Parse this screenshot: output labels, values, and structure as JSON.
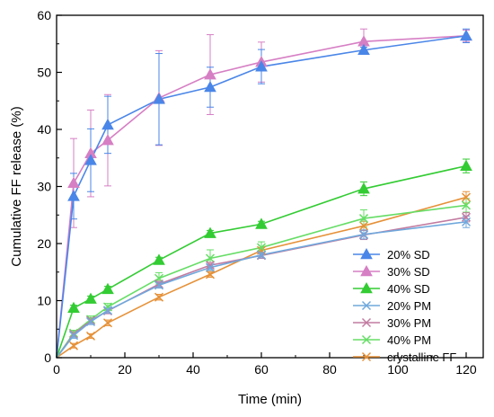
{
  "chart_data": {
    "type": "line",
    "xlabel": "Time (min)",
    "ylabel": "Cumulative FF release (%)",
    "xlim": [
      0,
      125
    ],
    "ylim": [
      0,
      60
    ],
    "x_ticks": [
      0,
      20,
      40,
      60,
      80,
      100,
      120
    ],
    "y_ticks": [
      0,
      10,
      20,
      30,
      40,
      50,
      60
    ],
    "grid": false,
    "legend_position": "bottom-right",
    "x": [
      0,
      5,
      10,
      15,
      30,
      45,
      60,
      90,
      120
    ],
    "series": [
      {
        "name": "20% SD",
        "marker": "triangle",
        "color": "#4a86e8",
        "values": [
          0,
          28.3,
          34.6,
          40.8,
          45.3,
          47.4,
          51.0,
          53.9,
          56.4
        ],
        "errors": [
          0,
          4.0,
          5.5,
          5.0,
          8.0,
          3.5,
          3.0,
          0.5,
          1.2
        ]
      },
      {
        "name": "30% SD",
        "marker": "triangle",
        "color": "#d67fc4",
        "values": [
          0,
          30.6,
          35.8,
          38.1,
          45.5,
          49.6,
          51.8,
          55.4,
          56.4
        ],
        "errors": [
          0,
          7.8,
          7.6,
          8.0,
          8.3,
          7.0,
          3.5,
          2.2,
          1.0
        ]
      },
      {
        "name": "40% SD",
        "marker": "triangle",
        "color": "#33cc33",
        "values": [
          0,
          8.7,
          10.3,
          12.0,
          17.1,
          21.8,
          23.4,
          29.6,
          33.6
        ],
        "errors": [
          0,
          0.5,
          0.5,
          0.5,
          0.5,
          0.5,
          0.5,
          1.2,
          1.2
        ]
      },
      {
        "name": "20% PM",
        "marker": "x",
        "color": "#6fa8dc",
        "values": [
          0,
          3.9,
          6.3,
          8.3,
          12.7,
          15.8,
          18.0,
          21.6,
          23.8
        ],
        "errors": [
          0,
          0.5,
          0.5,
          0.5,
          0.5,
          0.5,
          0.5,
          0.8,
          1.0
        ]
      },
      {
        "name": "30% PM",
        "marker": "x",
        "color": "#c27ba0",
        "values": [
          0,
          4.1,
          6.5,
          8.2,
          12.9,
          16.2,
          17.9,
          21.5,
          24.6
        ],
        "errors": [
          0,
          0.5,
          0.5,
          0.5,
          0.5,
          0.5,
          0.5,
          0.8,
          0.8
        ]
      },
      {
        "name": "40% PM",
        "marker": "x",
        "color": "#66dd66",
        "values": [
          0,
          4.3,
          6.7,
          8.9,
          13.9,
          17.4,
          19.3,
          24.4,
          26.7
        ],
        "errors": [
          0,
          0.5,
          0.6,
          0.6,
          1.0,
          1.5,
          1.0,
          1.5,
          1.2
        ]
      },
      {
        "name": "crystalline FF",
        "marker": "x",
        "color": "#e69138",
        "values": [
          0,
          2.1,
          3.8,
          6.1,
          10.6,
          14.6,
          18.8,
          23.1,
          28.1
        ],
        "errors": [
          0,
          0.4,
          0.4,
          0.5,
          0.5,
          0.5,
          0.5,
          0.8,
          1.0
        ]
      }
    ]
  }
}
